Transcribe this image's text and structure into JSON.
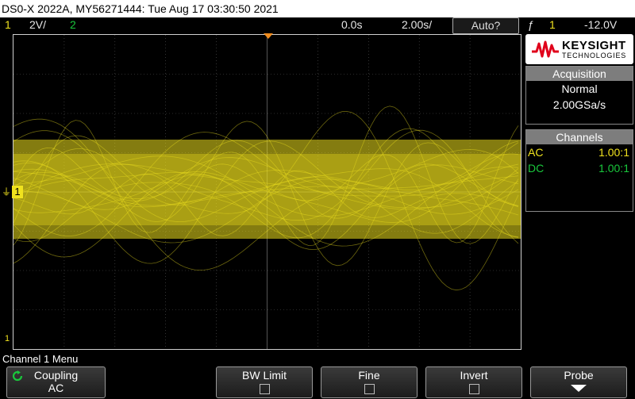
{
  "title": "DS0-X 2022A, MY56271444: Tue Aug 17 03:30:50 2021",
  "status": {
    "ch1_num": "1",
    "ch1_scale": "2V/",
    "ch2_num": "2",
    "time_offset": "0.0s",
    "time_scale": "2.00s/",
    "trigger_mode": "Auto?",
    "trigger_symbol": "ƒ",
    "trigger_source": "1",
    "trigger_level": "-12.0V"
  },
  "brand": {
    "name": "KEYSIGHT",
    "sub": "TECHNOLOGIES"
  },
  "acquisition": {
    "header": "Acquisition",
    "mode": "Normal",
    "rate": "2.00GSa/s"
  },
  "channels": {
    "header": "Channels",
    "rows": [
      {
        "coupling": "AC",
        "ratio": "1.00:1"
      },
      {
        "coupling": "DC",
        "ratio": "1.00:1"
      }
    ]
  },
  "markers": {
    "ch1_tag": "1",
    "ch1_bottom": "1"
  },
  "menu": {
    "title": "Channel 1 Menu",
    "softkeys": [
      {
        "label": "Coupling",
        "value": "AC"
      },
      {
        "label": "BW Limit"
      },
      {
        "label": "Fine"
      },
      {
        "label": "Invert"
      },
      {
        "label": "Probe"
      }
    ]
  },
  "colors": {
    "ch1": "#f0e21e",
    "ch2": "#19c83c",
    "trigger": "#f08c1e",
    "grid": "#555555"
  }
}
